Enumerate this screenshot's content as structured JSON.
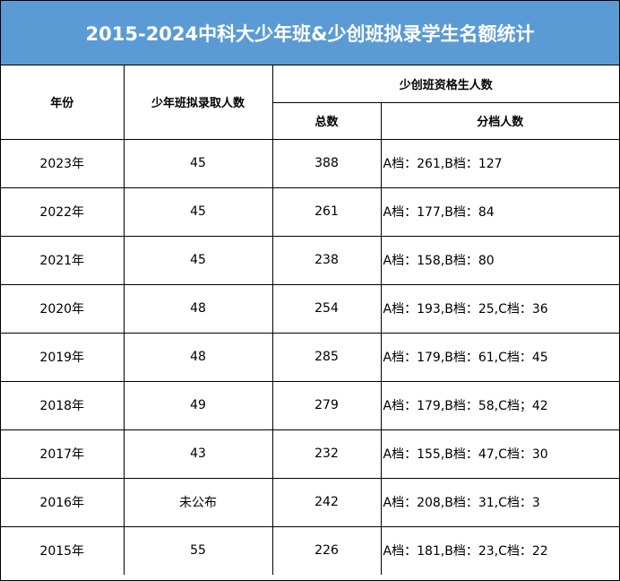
{
  "title": "2015-2024中科大少年班&少创班拟录学生名额统计",
  "headers": {
    "year": "年份",
    "admitted": "少年班拟录取人数",
    "qualified_group": "少创班资格生人数",
    "total": "总数",
    "breakdown": "分档人数"
  },
  "rows": [
    {
      "year": "2023年",
      "admitted": "45",
      "total": "388",
      "breakdown": "A档：261,B档：127"
    },
    {
      "year": "2022年",
      "admitted": "45",
      "total": "261",
      "breakdown": "A档：177,B档：84"
    },
    {
      "year": "2021年",
      "admitted": "45",
      "total": "238",
      "breakdown": "A档：158,B档：80"
    },
    {
      "year": "2020年",
      "admitted": "48",
      "total": "254",
      "breakdown": "A档：193,B档：25,C档：36"
    },
    {
      "year": "2019年",
      "admitted": "48",
      "total": "285",
      "breakdown": "A档：179,B档：61,C档：45"
    },
    {
      "year": "2018年",
      "admitted": "49",
      "total": "279",
      "breakdown": "A档：179,B档：58,C档；42"
    },
    {
      "year": "2017年",
      "admitted": "43",
      "total": "232",
      "breakdown": "A档：155,B档：47,C档：30"
    },
    {
      "year": "2016年",
      "admitted": "未公布",
      "total": "242",
      "breakdown": "A档：208,B档：31,C档：3"
    },
    {
      "year": "2015年",
      "admitted": "55",
      "total": "226",
      "breakdown": "A档：181,B档：23,C档：22"
    }
  ],
  "colors": {
    "title_background": "#5b9bd5",
    "title_text": "#ffffff",
    "grid_lines": "#000000"
  }
}
